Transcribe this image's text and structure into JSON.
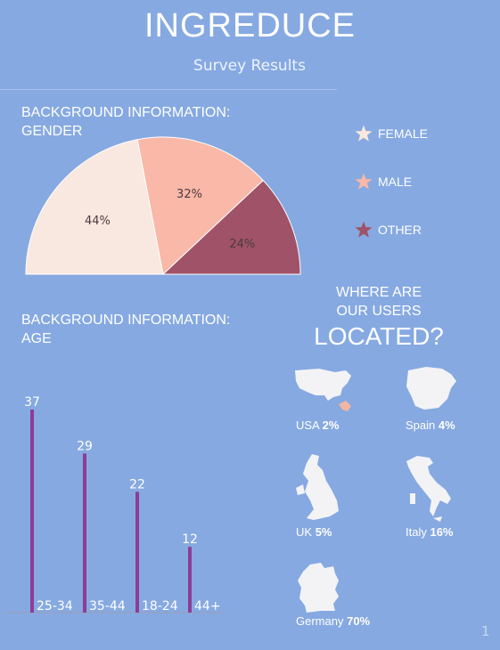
{
  "header": {
    "title": "INGREDUCE",
    "subtitle": "Survey Results"
  },
  "gender_section": {
    "title_line1": "BACKGROUND INFORMATION:",
    "title_line2": "GENDER"
  },
  "age_section": {
    "title_line1": "BACKGROUND INFORMATION:",
    "title_line2": "AGE"
  },
  "located": {
    "line1": "WHERE ARE",
    "line2": "OUR USERS",
    "big": "LOCATED?"
  },
  "countries": [
    {
      "name": "USA",
      "value": "2%"
    },
    {
      "name": "Spain",
      "value": "4%"
    },
    {
      "name": "UK",
      "value": "5%"
    },
    {
      "name": "Italy",
      "value": "16%"
    },
    {
      "name": "Germany",
      "value": "70%"
    }
  ],
  "page_number": "1",
  "colors": {
    "background": "#86a9e1",
    "female": "#f8e8df",
    "male": "#f9b8a8",
    "other": "#a05268",
    "bars": "#8d3d96"
  },
  "chart_data": [
    {
      "type": "pie",
      "variant": "half-donut",
      "labels": [
        "FEMALE",
        "MALE",
        "OTHER"
      ],
      "values": [
        44,
        32,
        24
      ],
      "value_labels": [
        "44%",
        "32%",
        "24%"
      ],
      "colors": [
        "#f8e8df",
        "#f9b8a8",
        "#a05268"
      ],
      "legend": "right"
    },
    {
      "type": "bar",
      "categories": [
        "25-34",
        "35-44",
        "18-24",
        "44+"
      ],
      "values": [
        37,
        29,
        22,
        12
      ],
      "color": "#8d3d96"
    }
  ]
}
